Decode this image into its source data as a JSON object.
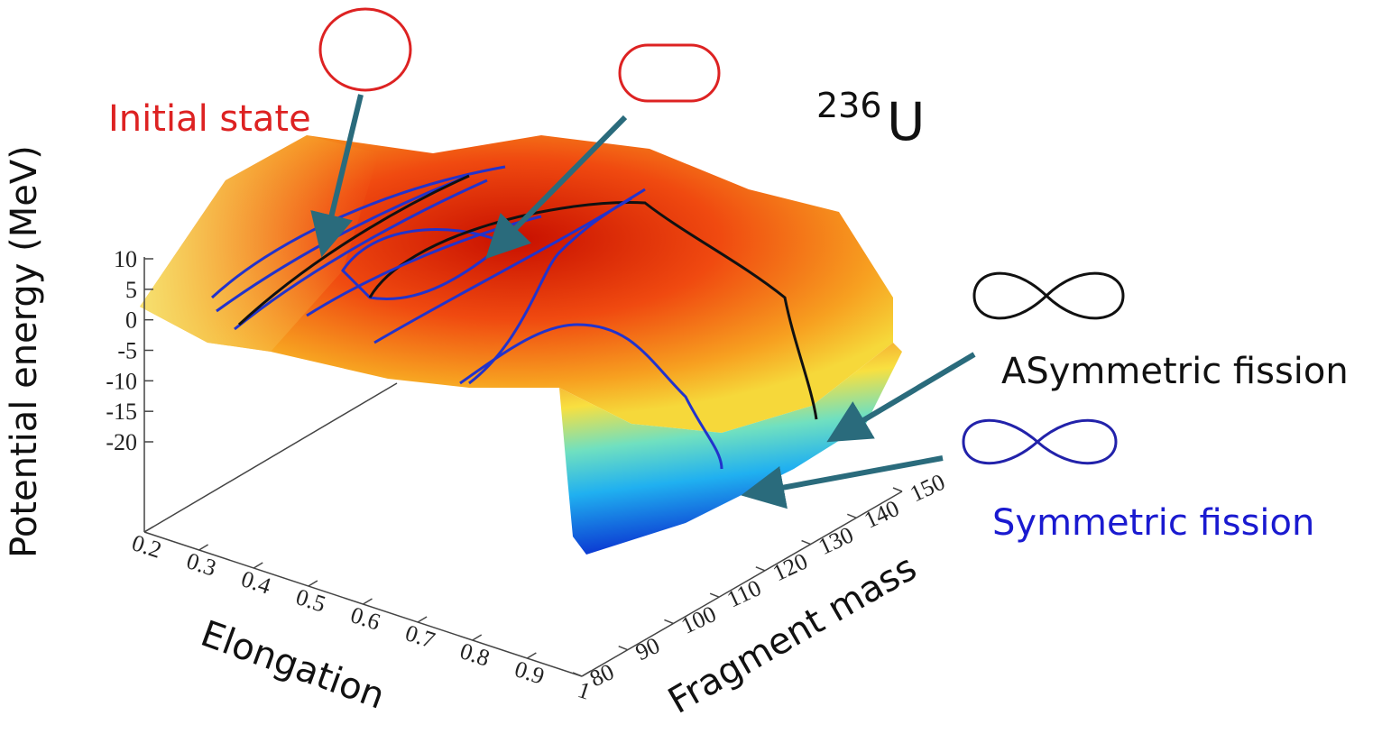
{
  "chart_data": {
    "type": "surface3d",
    "zlabel": "Potential energy (MeV)",
    "xlabel": "Elongation",
    "ylabel": "Fragment mass",
    "zticks": [
      10,
      5,
      0,
      -5,
      -10,
      -15,
      -20
    ],
    "xticks": [
      0.2,
      0.3,
      0.4,
      0.5,
      0.6,
      0.7,
      0.8,
      0.9,
      1
    ],
    "yticks": [
      80,
      90,
      100,
      110,
      120,
      130,
      140,
      150
    ],
    "nucleus": {
      "mass": "236",
      "symbol": "U"
    },
    "annotations": {
      "initial": "Initial state",
      "asymmetric": "ASymmetric fission",
      "symmetric": "Symmetric fission"
    }
  }
}
